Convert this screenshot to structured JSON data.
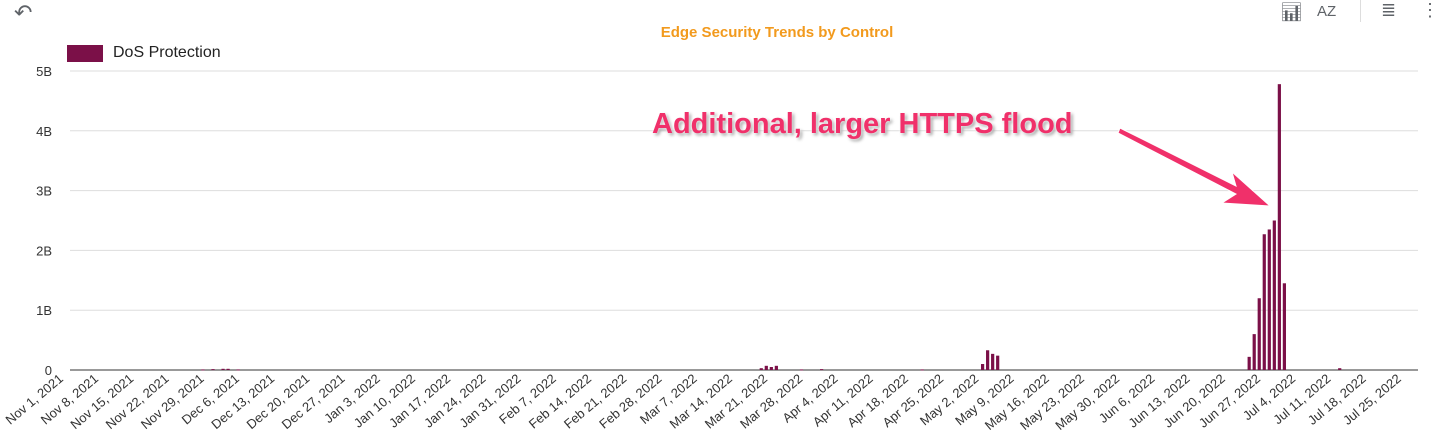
{
  "toolbar": {
    "undo_icon": "undo-icon",
    "icons": [
      "chart-settings-icon",
      "sort-az-icon",
      "filter-icon",
      "more-vert-icon"
    ],
    "sort_label": "AZ"
  },
  "chart_data": {
    "type": "bar",
    "title": "Edge Security Trends by Control",
    "legend": {
      "position": "top-left",
      "entries": [
        "DoS Protection"
      ]
    },
    "series": [
      {
        "name": "DoS Protection",
        "color": "#7b1048",
        "points": [
          [
            "2021-11-29",
            0.01
          ],
          [
            "2021-12-01",
            0.015
          ],
          [
            "2021-12-03",
            0.02
          ],
          [
            "2021-12-04",
            0.02
          ],
          [
            "2021-12-06",
            0.01
          ],
          [
            "2022-03-20",
            0.03
          ],
          [
            "2022-03-21",
            0.07
          ],
          [
            "2022-03-22",
            0.05
          ],
          [
            "2022-03-23",
            0.07
          ],
          [
            "2022-03-28",
            0.01
          ],
          [
            "2022-04-01",
            0.015
          ],
          [
            "2022-04-21",
            0.01
          ],
          [
            "2022-05-03",
            0.1
          ],
          [
            "2022-05-04",
            0.33
          ],
          [
            "2022-05-05",
            0.27
          ],
          [
            "2022-05-06",
            0.24
          ],
          [
            "2022-06-25",
            0.22
          ],
          [
            "2022-06-26",
            0.6
          ],
          [
            "2022-06-27",
            1.2
          ],
          [
            "2022-06-28",
            2.27
          ],
          [
            "2022-06-29",
            2.35
          ],
          [
            "2022-06-30",
            2.5
          ],
          [
            "2022-07-01",
            4.78
          ],
          [
            "2022-07-02",
            1.45
          ],
          [
            "2022-07-13",
            0.03
          ]
        ]
      }
    ],
    "yunit": "B",
    "ylim": [
      0,
      5
    ],
    "yticks": [
      "0",
      "1B",
      "2B",
      "3B",
      "4B",
      "5B"
    ],
    "xticks": [
      "Nov 1, 2021",
      "Nov 8, 2021",
      "Nov 15, 2021",
      "Nov 22, 2021",
      "Nov 29, 2021",
      "Dec 6, 2021",
      "Dec 13, 2021",
      "Dec 20, 2021",
      "Dec 27, 2021",
      "Jan 3, 2022",
      "Jan 10, 2022",
      "Jan 17, 2022",
      "Jan 24, 2022",
      "Jan 31, 2022",
      "Feb 7, 2022",
      "Feb 14, 2022",
      "Feb 21, 2022",
      "Feb 28, 2022",
      "Mar 7, 2022",
      "Mar 14, 2022",
      "Mar 21, 2022",
      "Mar 28, 2022",
      "Apr 4, 2022",
      "Apr 11, 2022",
      "Apr 18, 2022",
      "Apr 25, 2022",
      "May 2, 2022",
      "May 9, 2022",
      "May 16, 2022",
      "May 23, 2022",
      "May 30, 2022",
      "Jun 6, 2022",
      "Jun 13, 2022",
      "Jun 20, 2022",
      "Jun 27, 2022",
      "Jul 4, 2022",
      "Jul 11, 2022",
      "Jul 18, 2022",
      "Jul 25, 2022"
    ],
    "grid": true,
    "annotation": {
      "text": "Additional, larger HTTPS flood",
      "color": "#f0306a"
    }
  }
}
